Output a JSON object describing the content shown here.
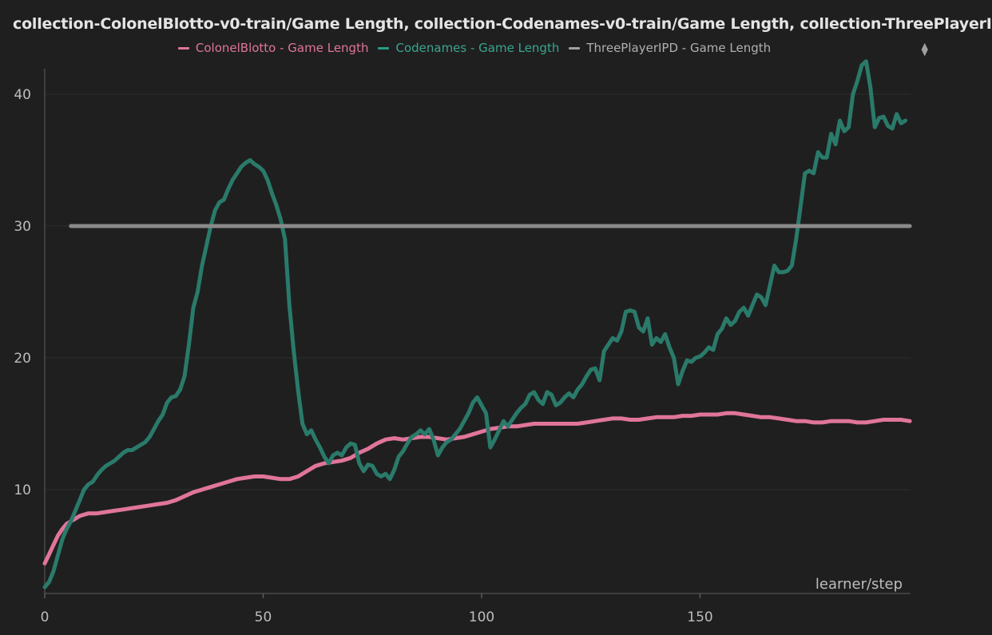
{
  "chart_data": {
    "type": "line",
    "title": "collection-ColonelBlotto-v0-train/Game Length, collection-Codenames-v0-train/Game Length, collection-ThreePlayerI",
    "xlabel": "learner/step",
    "ylabel": "",
    "xlim": [
      0,
      198
    ],
    "ylim": [
      2.5,
      42.3
    ],
    "x_ticks": [
      0,
      50,
      100,
      150
    ],
    "y_ticks": [
      10,
      20,
      30,
      40
    ],
    "grid": true,
    "legend_position": "top-center",
    "series": [
      {
        "name": "ColonelBlotto - Game Length",
        "color": "#e0759a",
        "points": [
          [
            0,
            4.4
          ],
          [
            1,
            5.1
          ],
          [
            2,
            5.8
          ],
          [
            3,
            6.5
          ],
          [
            4,
            7.0
          ],
          [
            5,
            7.4
          ],
          [
            6,
            7.6
          ],
          [
            7,
            7.8
          ],
          [
            8,
            8.0
          ],
          [
            10,
            8.2
          ],
          [
            12,
            8.2
          ],
          [
            14,
            8.3
          ],
          [
            16,
            8.4
          ],
          [
            18,
            8.5
          ],
          [
            20,
            8.6
          ],
          [
            22,
            8.7
          ],
          [
            24,
            8.8
          ],
          [
            26,
            8.9
          ],
          [
            28,
            9.0
          ],
          [
            30,
            9.2
          ],
          [
            32,
            9.5
          ],
          [
            34,
            9.8
          ],
          [
            36,
            10.0
          ],
          [
            38,
            10.2
          ],
          [
            40,
            10.4
          ],
          [
            42,
            10.6
          ],
          [
            44,
            10.8
          ],
          [
            46,
            10.9
          ],
          [
            48,
            11.0
          ],
          [
            50,
            11.0
          ],
          [
            52,
            10.9
          ],
          [
            54,
            10.8
          ],
          [
            56,
            10.8
          ],
          [
            58,
            11.0
          ],
          [
            60,
            11.4
          ],
          [
            62,
            11.8
          ],
          [
            64,
            12.0
          ],
          [
            66,
            12.1
          ],
          [
            68,
            12.2
          ],
          [
            70,
            12.4
          ],
          [
            72,
            12.8
          ],
          [
            74,
            13.1
          ],
          [
            76,
            13.5
          ],
          [
            78,
            13.8
          ],
          [
            80,
            13.9
          ],
          [
            82,
            13.8
          ],
          [
            84,
            13.9
          ],
          [
            86,
            14.0
          ],
          [
            88,
            14.0
          ],
          [
            90,
            13.9
          ],
          [
            92,
            13.8
          ],
          [
            94,
            13.9
          ],
          [
            96,
            14.0
          ],
          [
            98,
            14.2
          ],
          [
            100,
            14.4
          ],
          [
            102,
            14.6
          ],
          [
            104,
            14.7
          ],
          [
            106,
            14.8
          ],
          [
            108,
            14.8
          ],
          [
            110,
            14.9
          ],
          [
            112,
            15.0
          ],
          [
            114,
            15.0
          ],
          [
            116,
            15.0
          ],
          [
            118,
            15.0
          ],
          [
            120,
            15.0
          ],
          [
            122,
            15.0
          ],
          [
            124,
            15.1
          ],
          [
            126,
            15.2
          ],
          [
            128,
            15.3
          ],
          [
            130,
            15.4
          ],
          [
            132,
            15.4
          ],
          [
            134,
            15.3
          ],
          [
            136,
            15.3
          ],
          [
            138,
            15.4
          ],
          [
            140,
            15.5
          ],
          [
            142,
            15.5
          ],
          [
            144,
            15.5
          ],
          [
            146,
            15.6
          ],
          [
            148,
            15.6
          ],
          [
            150,
            15.7
          ],
          [
            152,
            15.7
          ],
          [
            154,
            15.7
          ],
          [
            156,
            15.8
          ],
          [
            158,
            15.8
          ],
          [
            160,
            15.7
          ],
          [
            162,
            15.6
          ],
          [
            164,
            15.5
          ],
          [
            166,
            15.5
          ],
          [
            168,
            15.4
          ],
          [
            170,
            15.3
          ],
          [
            172,
            15.2
          ],
          [
            174,
            15.2
          ],
          [
            176,
            15.1
          ],
          [
            178,
            15.1
          ],
          [
            180,
            15.2
          ],
          [
            182,
            15.2
          ],
          [
            184,
            15.2
          ],
          [
            186,
            15.1
          ],
          [
            188,
            15.1
          ],
          [
            190,
            15.2
          ],
          [
            192,
            15.3
          ],
          [
            194,
            15.3
          ],
          [
            196,
            15.3
          ],
          [
            198,
            15.2
          ]
        ]
      },
      {
        "name": "Codenames - Game Length",
        "color": "#2a7a6a",
        "points": [
          [
            0,
            2.6
          ],
          [
            1,
            3.0
          ],
          [
            2,
            3.8
          ],
          [
            3,
            5.0
          ],
          [
            4,
            6.2
          ],
          [
            5,
            7.0
          ],
          [
            6,
            7.6
          ],
          [
            7,
            8.4
          ],
          [
            8,
            9.2
          ],
          [
            9,
            10.0
          ],
          [
            10,
            10.4
          ],
          [
            11,
            10.6
          ],
          [
            12,
            11.1
          ],
          [
            13,
            11.5
          ],
          [
            14,
            11.8
          ],
          [
            15,
            12.0
          ],
          [
            16,
            12.2
          ],
          [
            17,
            12.5
          ],
          [
            18,
            12.8
          ],
          [
            19,
            13.0
          ],
          [
            20,
            13.0
          ],
          [
            21,
            13.2
          ],
          [
            22,
            13.4
          ],
          [
            23,
            13.6
          ],
          [
            24,
            14.0
          ],
          [
            25,
            14.6
          ],
          [
            26,
            15.2
          ],
          [
            27,
            15.7
          ],
          [
            28,
            16.6
          ],
          [
            29,
            17.0
          ],
          [
            30,
            17.1
          ],
          [
            31,
            17.6
          ],
          [
            32,
            18.6
          ],
          [
            33,
            21.0
          ],
          [
            34,
            23.8
          ],
          [
            35,
            25.0
          ],
          [
            36,
            27.0
          ],
          [
            37,
            28.5
          ],
          [
            38,
            30.0
          ],
          [
            39,
            31.2
          ],
          [
            40,
            31.8
          ],
          [
            41,
            32.0
          ],
          [
            42,
            32.8
          ],
          [
            43,
            33.5
          ],
          [
            44,
            34.0
          ],
          [
            45,
            34.5
          ],
          [
            46,
            34.8
          ],
          [
            47,
            35.0
          ],
          [
            48,
            34.7
          ],
          [
            49,
            34.5
          ],
          [
            50,
            34.2
          ],
          [
            51,
            33.5
          ],
          [
            52,
            32.5
          ],
          [
            53,
            31.6
          ],
          [
            54,
            30.5
          ],
          [
            55,
            29.0
          ],
          [
            56,
            24.0
          ],
          [
            57,
            20.5
          ],
          [
            58,
            17.5
          ],
          [
            59,
            15.0
          ],
          [
            60,
            14.2
          ],
          [
            61,
            14.5
          ],
          [
            62,
            13.8
          ],
          [
            63,
            13.2
          ],
          [
            64,
            12.5
          ],
          [
            65,
            12.0
          ],
          [
            66,
            12.6
          ],
          [
            67,
            12.8
          ],
          [
            68,
            12.6
          ],
          [
            69,
            13.2
          ],
          [
            70,
            13.5
          ],
          [
            71,
            13.4
          ],
          [
            72,
            12.0
          ],
          [
            73,
            11.4
          ],
          [
            74,
            11.9
          ],
          [
            75,
            11.8
          ],
          [
            76,
            11.2
          ],
          [
            77,
            11.0
          ],
          [
            78,
            11.2
          ],
          [
            79,
            10.8
          ],
          [
            80,
            11.5
          ],
          [
            81,
            12.5
          ],
          [
            82,
            12.9
          ],
          [
            83,
            13.5
          ],
          [
            84,
            14.0
          ],
          [
            85,
            14.2
          ],
          [
            86,
            14.5
          ],
          [
            87,
            14.2
          ],
          [
            88,
            14.6
          ],
          [
            89,
            13.8
          ],
          [
            90,
            12.6
          ],
          [
            91,
            13.2
          ],
          [
            92,
            13.6
          ],
          [
            93,
            13.8
          ],
          [
            94,
            14.2
          ],
          [
            95,
            14.6
          ],
          [
            96,
            15.2
          ],
          [
            97,
            15.8
          ],
          [
            98,
            16.6
          ],
          [
            99,
            17.0
          ],
          [
            100,
            16.4
          ],
          [
            101,
            15.8
          ],
          [
            102,
            13.2
          ],
          [
            103,
            13.8
          ],
          [
            104,
            14.5
          ],
          [
            105,
            15.2
          ],
          [
            106,
            14.8
          ],
          [
            107,
            15.3
          ],
          [
            108,
            15.8
          ],
          [
            109,
            16.2
          ],
          [
            110,
            16.5
          ],
          [
            111,
            17.2
          ],
          [
            112,
            17.4
          ],
          [
            113,
            16.8
          ],
          [
            114,
            16.5
          ],
          [
            115,
            17.4
          ],
          [
            116,
            17.2
          ],
          [
            117,
            16.4
          ],
          [
            118,
            16.6
          ],
          [
            119,
            17.0
          ],
          [
            120,
            17.3
          ],
          [
            121,
            17.0
          ],
          [
            122,
            17.6
          ],
          [
            123,
            18.0
          ],
          [
            124,
            18.6
          ],
          [
            125,
            19.1
          ],
          [
            126,
            19.2
          ],
          [
            127,
            18.3
          ],
          [
            128,
            20.5
          ],
          [
            129,
            21.0
          ],
          [
            130,
            21.5
          ],
          [
            131,
            21.3
          ],
          [
            132,
            22.0
          ],
          [
            133,
            23.5
          ],
          [
            134,
            23.6
          ],
          [
            135,
            23.5
          ],
          [
            136,
            22.3
          ],
          [
            137,
            22.0
          ],
          [
            138,
            23.0
          ],
          [
            139,
            21.0
          ],
          [
            140,
            21.5
          ],
          [
            141,
            21.2
          ],
          [
            142,
            21.8
          ],
          [
            143,
            20.8
          ],
          [
            144,
            20.0
          ],
          [
            145,
            18.0
          ],
          [
            146,
            19.0
          ],
          [
            147,
            19.8
          ],
          [
            148,
            19.7
          ],
          [
            149,
            20.0
          ],
          [
            150,
            20.1
          ],
          [
            151,
            20.4
          ],
          [
            152,
            20.8
          ],
          [
            153,
            20.6
          ],
          [
            154,
            21.8
          ],
          [
            155,
            22.2
          ],
          [
            156,
            23.0
          ],
          [
            157,
            22.5
          ],
          [
            158,
            22.8
          ],
          [
            159,
            23.5
          ],
          [
            160,
            23.8
          ],
          [
            161,
            23.2
          ],
          [
            162,
            24.0
          ],
          [
            163,
            24.8
          ],
          [
            164,
            24.6
          ],
          [
            165,
            24.0
          ],
          [
            166,
            25.5
          ],
          [
            167,
            27.0
          ],
          [
            168,
            26.5
          ],
          [
            169,
            26.5
          ],
          [
            170,
            26.6
          ],
          [
            171,
            27.0
          ],
          [
            172,
            29.0
          ],
          [
            173,
            31.5
          ],
          [
            174,
            34.0
          ],
          [
            175,
            34.2
          ],
          [
            176,
            34.0
          ],
          [
            177,
            35.6
          ],
          [
            178,
            35.2
          ],
          [
            179,
            35.2
          ],
          [
            180,
            37.0
          ],
          [
            181,
            36.2
          ],
          [
            182,
            38.0
          ],
          [
            183,
            37.2
          ],
          [
            184,
            37.5
          ],
          [
            185,
            40.0
          ],
          [
            186,
            41.0
          ],
          [
            187,
            42.2
          ],
          [
            188,
            42.5
          ],
          [
            189,
            40.5
          ],
          [
            190,
            37.5
          ],
          [
            191,
            38.2
          ],
          [
            192,
            38.3
          ],
          [
            193,
            37.6
          ],
          [
            194,
            37.4
          ],
          [
            195,
            38.5
          ],
          [
            196,
            37.8
          ],
          [
            197,
            38.0
          ]
        ]
      },
      {
        "name": "ThreePlayerIPD - Game Length",
        "color": "#8a8a8a",
        "points": [
          [
            6,
            30.0
          ],
          [
            198,
            30.0
          ]
        ]
      }
    ]
  }
}
